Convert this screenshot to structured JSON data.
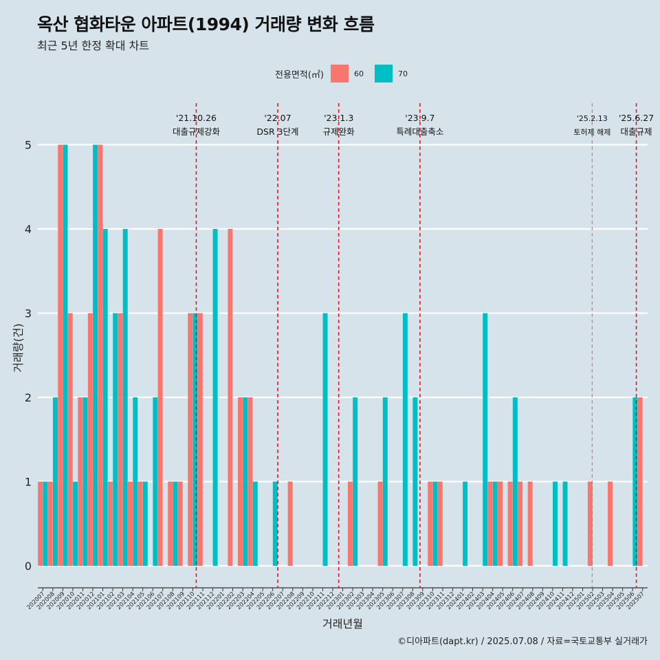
{
  "title": "옥산 협화타운 아파트(1994) 거래량 변화 흐름",
  "subtitle": "최근 5년 한정 확대 차트",
  "legend": {
    "title": "전용면적(㎡)",
    "items": [
      {
        "label": "60",
        "color": "#F8766D"
      },
      {
        "label": "70",
        "color": "#00BFC4"
      }
    ]
  },
  "caption": "©디아파트(dapt.kr) / 2025.07.08 / 자료=국토교통부 실거래가",
  "chart_data": {
    "type": "bar",
    "xlabel": "거래년월",
    "ylabel": "거래량(건)",
    "ylim": [
      0,
      5
    ],
    "yticks": [
      0,
      1,
      2,
      3,
      4,
      5
    ],
    "grid": true,
    "legend_position": "top",
    "categories": [
      "202007",
      "202008",
      "202009",
      "202010",
      "202011",
      "202012",
      "202101",
      "202102",
      "202103",
      "202104",
      "202105",
      "202106",
      "202107",
      "202108",
      "202109",
      "202110",
      "202111",
      "202112",
      "202201",
      "202202",
      "202203",
      "202204",
      "202205",
      "202206",
      "202207",
      "202208",
      "202209",
      "202210",
      "202211",
      "202212",
      "202301",
      "202302",
      "202303",
      "202304",
      "202305",
      "202306",
      "202307",
      "202308",
      "202309",
      "202310",
      "202311",
      "202312",
      "202401",
      "202402",
      "202403",
      "202404",
      "202405",
      "202406",
      "202407",
      "202408",
      "202409",
      "202410",
      "202411",
      "202412",
      "202501",
      "202502",
      "202503",
      "202504",
      "202505",
      "202506",
      "202507"
    ],
    "series": [
      {
        "name": "60",
        "color": "#F8766D",
        "values": [
          1,
          1,
          5,
          3,
          2,
          3,
          5,
          1,
          3,
          1,
          1,
          0,
          4,
          1,
          1,
          3,
          3,
          0,
          0,
          4,
          2,
          2,
          0,
          0,
          0,
          1,
          0,
          0,
          0,
          0,
          0,
          1,
          0,
          0,
          1,
          0,
          0,
          0,
          0,
          1,
          1,
          0,
          0,
          0,
          0,
          1,
          1,
          1,
          1,
          1,
          0,
          0,
          0,
          0,
          0,
          1,
          0,
          1,
          0,
          0,
          2
        ]
      },
      {
        "name": "70",
        "color": "#00BFC4",
        "values": [
          1,
          2,
          5,
          1,
          2,
          5,
          4,
          3,
          4,
          2,
          1,
          2,
          0,
          1,
          0,
          3,
          0,
          4,
          0,
          0,
          2,
          1,
          0,
          1,
          0,
          0,
          0,
          0,
          3,
          0,
          0,
          2,
          0,
          0,
          2,
          0,
          3,
          2,
          0,
          1,
          0,
          0,
          1,
          0,
          3,
          1,
          0,
          2,
          0,
          0,
          0,
          1,
          1,
          0,
          0,
          0,
          0,
          0,
          0,
          2,
          0
        ]
      }
    ],
    "events": [
      {
        "date": "'21.10.26",
        "label": "대출규제강화",
        "month": "202110",
        "pos": 0.85,
        "style": "thick"
      },
      {
        "date": "'22.07",
        "label": "DSR 3단계",
        "month": "202207",
        "pos": 0.0,
        "style": "thick"
      },
      {
        "date": "'23.1.3",
        "label": "규제완화",
        "month": "202301",
        "pos": 0.1,
        "style": "thick"
      },
      {
        "date": "'23.9.7",
        "label": "특례대출축소",
        "month": "202309",
        "pos": 0.23,
        "style": "thick"
      },
      {
        "date": "'25.2.13",
        "label": "토허제 해제",
        "month": "202502",
        "pos": 0.45,
        "style": "thin"
      },
      {
        "date": "'25.6.27",
        "label": "대출규제",
        "month": "202506",
        "pos": 0.87,
        "style": "thick"
      }
    ]
  }
}
